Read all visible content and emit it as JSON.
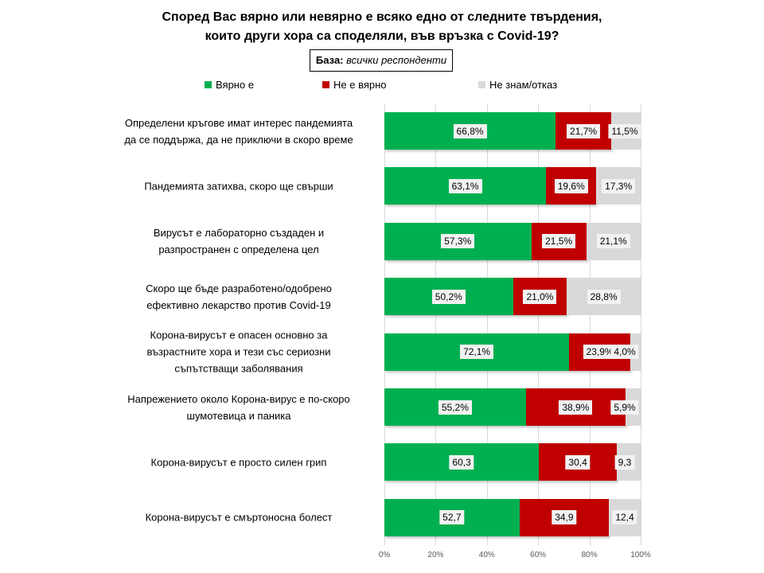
{
  "chart_data": {
    "type": "bar",
    "orientation": "horizontal",
    "stacked": true,
    "title": "Според Вас вярно или невярно е всяко едно от следните твърдения,\nкоито други хора са споделяли, във връзка с Covid-19?",
    "base_label": "База:",
    "base_value": "всички респонденти",
    "categories": [
      "Определени кръгове имат интерес пандемията\nда се поддържа, да не приключи в скоро време",
      "Пандемията затихва, скоро ще свърши",
      "Вирусът е лабораторно създаден и\nразпространен с определена цел",
      "Скоро ще бъде разработено/одобрено\nефективно лекарство против Covid-19",
      "Корона-вирусът е опасен основно за\nвъзрастните хора и тези със сериозни\nсъпътстващи заболявания",
      "Напрежението около  Корона-вирус е по-скоро\nшумотевица и паника",
      "Корона-вирусът е просто  силен грип",
      "Корона-вирусът е смъртоносна болест"
    ],
    "series": [
      {
        "name": "Вярно е",
        "color": "#00b050",
        "values": [
          66.8,
          63.1,
          57.3,
          50.2,
          72.1,
          55.2,
          60.3,
          52.7
        ],
        "labels": [
          "66,8%",
          "63,1%",
          "57,3%",
          "50,2%",
          "72,1%",
          "55,2%",
          "60,3",
          "52,7"
        ]
      },
      {
        "name": "Не е вярно",
        "color": "#c00000",
        "values": [
          21.7,
          19.6,
          21.5,
          21.0,
          23.9,
          38.9,
          30.4,
          34.9
        ],
        "labels": [
          "21,7%",
          "19,6%",
          "21,5%",
          "21,0%",
          "23,9%",
          "38,9%",
          "30,4",
          "34,9"
        ]
      },
      {
        "name": "Не знам/отказ",
        "color": "#d9d9d9",
        "values": [
          11.5,
          17.3,
          21.1,
          28.8,
          4.0,
          5.9,
          9.3,
          12.4
        ],
        "labels": [
          "11,5%",
          "17,3%",
          "21,1%",
          "28,8%",
          "4,0%",
          "5,9%",
          "9,3",
          "12,4"
        ]
      }
    ],
    "xlim": [
      0,
      100
    ],
    "xticks": [
      "0%",
      "20%",
      "40%",
      "60%",
      "80%",
      "100%"
    ],
    "legend_position": "top",
    "grid": true
  }
}
